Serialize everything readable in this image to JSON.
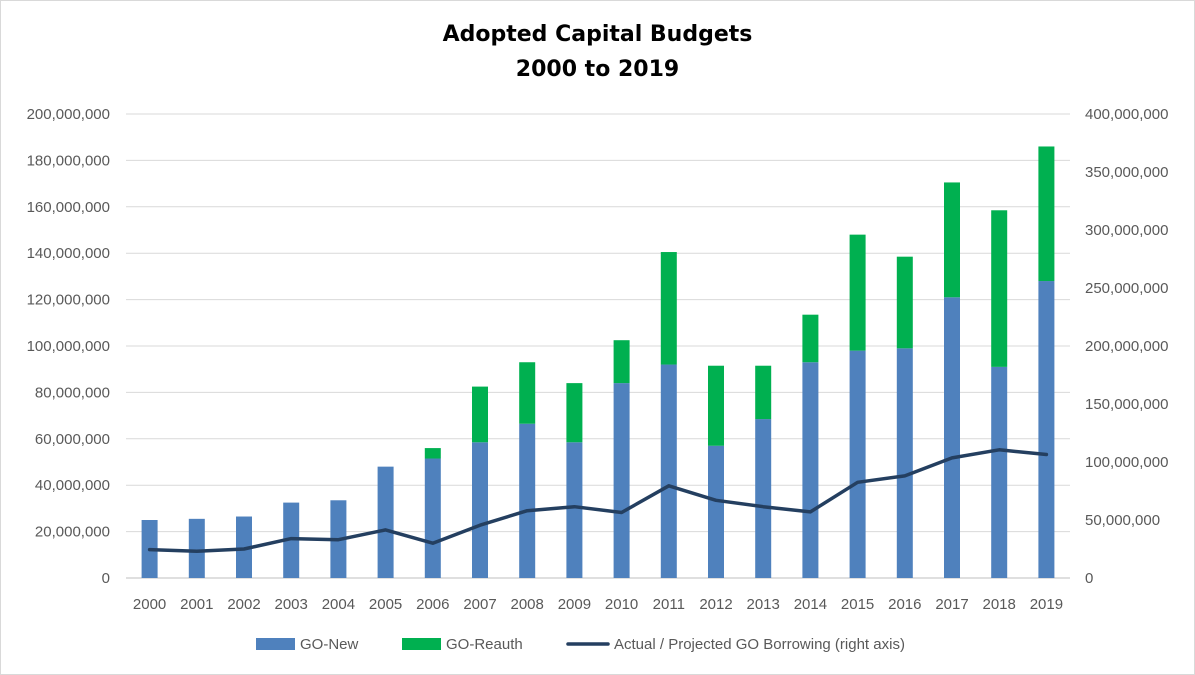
{
  "chart_data": {
    "type": "bar",
    "stacked": true,
    "title": "Adopted Capital Budgets",
    "subtitle": "2000 to 2019",
    "categories": [
      "2000",
      "2001",
      "2002",
      "2003",
      "2004",
      "2005",
      "2006",
      "2007",
      "2008",
      "2009",
      "2010",
      "2011",
      "2012",
      "2013",
      "2014",
      "2015",
      "2016",
      "2017",
      "2018",
      "2019"
    ],
    "series": [
      {
        "name": "GO-New",
        "type": "bar",
        "axis": "left",
        "color": "#4f81bd",
        "values": [
          25000000,
          25500000,
          26500000,
          32500000,
          33500000,
          48000000,
          51500000,
          58500000,
          66500000,
          58500000,
          84000000,
          92000000,
          57000000,
          68500000,
          93000000,
          98000000,
          99000000,
          121000000,
          91000000,
          128000000
        ]
      },
      {
        "name": "GO-Reauth",
        "type": "bar",
        "axis": "left",
        "color": "#00b050",
        "values": [
          0,
          0,
          0,
          0,
          0,
          0,
          4500000,
          24000000,
          26500000,
          25500000,
          18500000,
          48500000,
          34500000,
          23000000,
          20500000,
          50000000,
          39500000,
          49500000,
          67500000,
          58000000
        ]
      },
      {
        "name": "Actual / Projected GO Borrowing (right axis)",
        "type": "line",
        "axis": "right",
        "color": "#243f60",
        "values": [
          24500000,
          23000000,
          25000000,
          34000000,
          33000000,
          41500000,
          30000000,
          45500000,
          58000000,
          61500000,
          56500000,
          79500000,
          67000000,
          61500000,
          57000000,
          82500000,
          88000000,
          103500000,
          110500000,
          106500000
        ]
      }
    ],
    "yleft": {
      "ylim": [
        0,
        200000000
      ],
      "ticks": [
        "0",
        "20,000,000",
        "40,000,000",
        "60,000,000",
        "80,000,000",
        "100,000,000",
        "120,000,000",
        "140,000,000",
        "160,000,000",
        "180,000,000",
        "200,000,000"
      ]
    },
    "yright": {
      "ylim": [
        0,
        400000000
      ],
      "ticks": [
        "0",
        "50,000,000",
        "100,000,000",
        "150,000,000",
        "200,000,000",
        "250,000,000",
        "300,000,000",
        "350,000,000",
        "400,000,000"
      ]
    },
    "grid": true,
    "legend_position": "bottom"
  }
}
